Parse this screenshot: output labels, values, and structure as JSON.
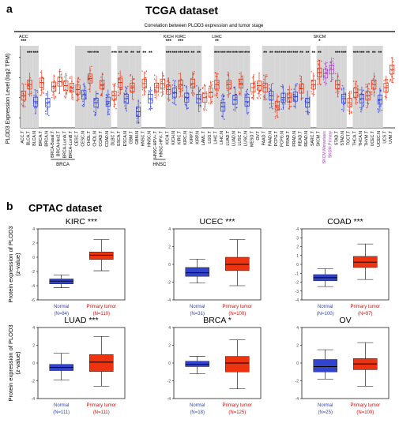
{
  "panel_a": {
    "letter": "a",
    "title": "TCGA dataset",
    "header": "Correlation between PLOD3 expression and tumor stage",
    "ylabel": "PLOD3 Expression Level (log2 TPM)",
    "stage_marks": [
      {
        "name": "ACC",
        "sig": "***"
      },
      {
        "name": "KICH",
        "sig": "***"
      },
      {
        "name": "KIRC",
        "sig": "***"
      },
      {
        "name": "LIHC",
        "sig": "**"
      },
      {
        "name": "SKCM",
        "sig": "*"
      }
    ],
    "group_labels": [
      "BRCA",
      "HNSC"
    ]
  },
  "panel_b": {
    "letter": "b",
    "title": "CPTAC dataset",
    "ylabel": "Protein expression  of PLOD3",
    "ylabel2": "(z-value)"
  },
  "chart_data": [
    {
      "type": "box",
      "title": "Correlation between PLOD3 expression and tumor stage",
      "ylabel": "PLOD3 Expression Level (log2 TPM)",
      "categories": [
        "ACC.T",
        "BLCA.T",
        "BLCA.N",
        "BRCA.T",
        "BRCA.N",
        "BRCA-Basal.T",
        "BRCA-Her2.T",
        "BRCA-LumA.T",
        "BRCA-LumB.T",
        "CESC.T",
        "CESC.N",
        "CHOL.T",
        "CHOL.N",
        "COAD.T",
        "COAD.N",
        "DLBC.T",
        "ESCA.T",
        "ESCA.N",
        "GBM.T",
        "GBM.N",
        "HNSC.T",
        "HNSC.N",
        "HNSC-HPV+.T",
        "HNSC-HPV-.T",
        "KICH.T",
        "KICH.N",
        "KIRC.T",
        "KIRC.N",
        "KIRP.T",
        "KIRP.N",
        "LAML.T",
        "LGG.T",
        "LIHC.T",
        "LIHC.N",
        "LUAD.T",
        "LUAD.N",
        "LUSC.T",
        "LUSC.N",
        "MESO.T",
        "OV.T",
        "PAAD.T",
        "PAAD.N",
        "PCPG.T",
        "PCPG.N",
        "PRAD.T",
        "PRAD.N",
        "READ.T",
        "READ.N",
        "SARC.T",
        "SKCM.T",
        "SKCM.Metastasis",
        "SKCM.Primary",
        "STAD.T",
        "STAD.N",
        "TGCT.T",
        "THCA.T",
        "THCA.N",
        "THYM.T",
        "UCEC.T",
        "UCEC.N",
        "UCS.T",
        "UVM.T"
      ],
      "significance": [
        "",
        "***",
        "***",
        "",
        "",
        "",
        "",
        "",
        "",
        "",
        "",
        "***",
        "***",
        "",
        "",
        "***",
        "**",
        "**",
        "**",
        "**",
        "**",
        "**",
        "",
        "",
        "***",
        "***",
        "***",
        "***",
        "**",
        "**",
        "",
        "",
        "***",
        "***",
        "***",
        "***",
        "***",
        "***",
        "",
        "",
        "**",
        "**",
        "***",
        "***",
        "***",
        "***",
        "**",
        "**",
        "**",
        "**",
        "",
        "",
        "***",
        "***",
        "",
        "***",
        "***",
        "**",
        "**",
        "**",
        "",
        ""
      ],
      "shading": [
        1,
        1,
        1,
        0,
        0,
        0,
        0,
        0,
        0,
        1,
        1,
        1,
        1,
        1,
        1,
        0,
        1,
        1,
        1,
        1,
        0,
        0,
        0,
        0,
        1,
        1,
        1,
        1,
        1,
        1,
        0,
        0,
        1,
        1,
        1,
        1,
        1,
        1,
        0,
        0,
        1,
        1,
        1,
        1,
        1,
        1,
        1,
        1,
        0,
        1,
        1,
        1,
        1,
        1,
        0,
        1,
        1,
        1,
        1,
        1,
        0,
        0
      ],
      "median": [
        4.2,
        5.3,
        3.6,
        5.5,
        3.5,
        5.1,
        5.6,
        5.2,
        5.0,
        4.8,
        4.3,
        5.9,
        3.5,
        5.3,
        3.6,
        4.2,
        5.5,
        3.9,
        5.0,
        2.6,
        5.4,
        3.9,
        5.0,
        5.4,
        4.8,
        4.5,
        5.3,
        4.0,
        5.4,
        3.9,
        4.0,
        4.5,
        5.3,
        3.1,
        5.3,
        3.8,
        5.4,
        3.6,
        5.0,
        5.2,
        5.0,
        4.2,
        3.2,
        4.0,
        4.0,
        4.1,
        4.9,
        3.5,
        5.3,
        6.5,
        6.4,
        6.8,
        5.3,
        3.9,
        3.5,
        4.5,
        3.9,
        4.2,
        5.3,
        3.8,
        5.0,
        6.8
      ]
    },
    {
      "type": "box",
      "title": "KIRC",
      "significance": "***",
      "ylabel": "Protein expression  of PLOD3 (z-value)",
      "ylim": [
        -6,
        4
      ],
      "yticks": [
        -6,
        -4,
        -2,
        0,
        2,
        4
      ],
      "groups": [
        {
          "name": "Normal",
          "n_label": "(N=84)",
          "min": -4.3,
          "q1": -3.75,
          "median": -3.35,
          "q3": -3.05,
          "max": -2.5,
          "color": "#3344cc"
        },
        {
          "name": "Primary tumor",
          "n_label": "(N=110)",
          "min": -1.9,
          "q1": -0.3,
          "median": 0.3,
          "q3": 0.75,
          "max": 2.5,
          "color": "#ee3311"
        }
      ]
    },
    {
      "type": "box",
      "title": "UCEC",
      "significance": "***",
      "ylim": [
        -4,
        4
      ],
      "yticks": [
        -4,
        -2,
        0,
        2,
        4
      ],
      "groups": [
        {
          "name": "Normal",
          "n_label": "(N=31)",
          "min": -2.1,
          "q1": -1.35,
          "median": -0.95,
          "q3": -0.35,
          "max": 0.6,
          "color": "#3344cc"
        },
        {
          "name": "Primary tumor",
          "n_label": "(N=100)",
          "min": -2.4,
          "q1": -0.7,
          "median": 0.0,
          "q3": 0.8,
          "max": 2.8,
          "color": "#ee3311"
        }
      ]
    },
    {
      "type": "box",
      "title": "COAD",
      "significance": "***",
      "ylim": [
        -4,
        4
      ],
      "yticks": [
        -4,
        -3,
        -2,
        -1,
        0,
        1,
        2,
        3,
        4
      ],
      "groups": [
        {
          "name": "Normal",
          "n_label": "(N=100)",
          "min": -2.5,
          "q1": -1.85,
          "median": -1.5,
          "q3": -1.15,
          "max": -0.5,
          "color": "#3344cc"
        },
        {
          "name": "Primary tumor",
          "n_label": "(N=97)",
          "min": -1.7,
          "q1": -0.35,
          "median": 0.25,
          "q3": 0.9,
          "max": 2.3,
          "color": "#ee3311"
        }
      ]
    },
    {
      "type": "box",
      "title": "LUAD",
      "significance": "***",
      "ylabel": "Protein expression  of PLOD3 (z-value)",
      "ylim": [
        -4,
        4
      ],
      "yticks": [
        -4,
        -2,
        0,
        2,
        4
      ],
      "groups": [
        {
          "name": "Normal",
          "n_label": "(N=111)",
          "min": -1.9,
          "q1": -0.85,
          "median": -0.5,
          "q3": -0.15,
          "max": 1.1,
          "color": "#3344cc"
        },
        {
          "name": "Primary tumor",
          "n_label": "(N=111)",
          "min": -2.6,
          "q1": -0.95,
          "median": 0.1,
          "q3": 0.95,
          "max": 3.0,
          "color": "#ee3311"
        }
      ]
    },
    {
      "type": "box",
      "title": "BRCA",
      "significance": "*",
      "ylim": [
        -4,
        4
      ],
      "yticks": [
        -4,
        -2,
        0,
        2,
        4
      ],
      "groups": [
        {
          "name": "Normal",
          "n_label": "(N=18)",
          "min": -1.2,
          "q1": -0.4,
          "median": -0.15,
          "q3": 0.2,
          "max": 0.75,
          "color": "#3344cc"
        },
        {
          "name": "Primary tumor",
          "n_label": "(N=125)",
          "min": -2.9,
          "q1": -1.0,
          "median": 0.0,
          "q3": 0.75,
          "max": 2.6,
          "color": "#ee3311"
        }
      ]
    },
    {
      "type": "box",
      "title": "OV",
      "significance": "",
      "ylim": [
        -4,
        4
      ],
      "yticks": [
        -4,
        -2,
        0,
        2,
        4
      ],
      "groups": [
        {
          "name": "Normal",
          "n_label": "(N=25)",
          "min": -1.8,
          "q1": -1.0,
          "median": -0.4,
          "q3": 0.4,
          "max": 1.5,
          "color": "#3344cc"
        },
        {
          "name": "Primary tumor",
          "n_label": "(N=100)",
          "min": -2.6,
          "q1": -0.75,
          "median": -0.1,
          "q3": 0.5,
          "max": 2.3,
          "color": "#ee3311"
        }
      ]
    }
  ]
}
